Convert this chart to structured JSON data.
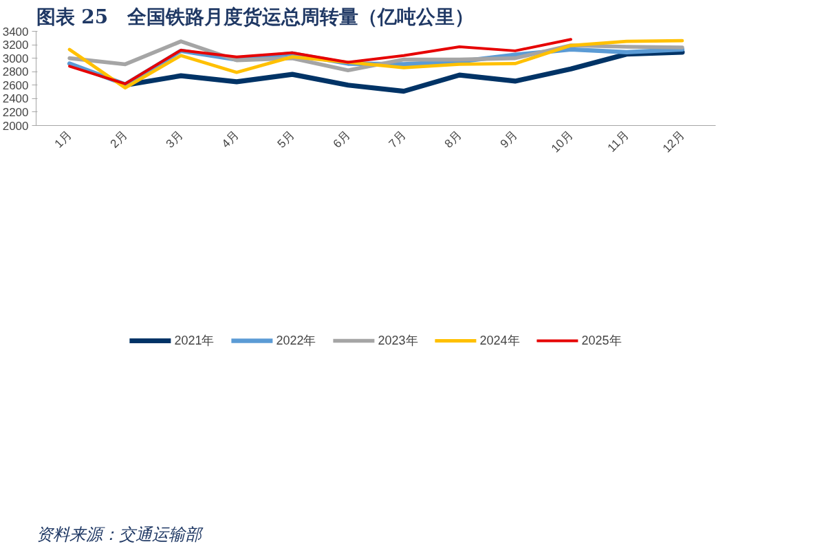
{
  "chart_data": {
    "type": "line",
    "title": "图表 25　全国铁路月度货运总周转量（亿吨公里）",
    "categories": [
      "1月",
      "2月",
      "3月",
      "4月",
      "5月",
      "6月",
      "7月",
      "8月",
      "9月",
      "10月",
      "11月",
      "12月"
    ],
    "series": [
      {
        "name": "2021年",
        "color": "#003366",
        "values": [
          null,
          2600,
          2740,
          2650,
          2760,
          2600,
          2510,
          2750,
          2660,
          2840,
          3060,
          3090
        ]
      },
      {
        "name": "2022年",
        "color": "#5b9bd5",
        "values": [
          2920,
          2610,
          3110,
          2980,
          3070,
          2920,
          2910,
          2950,
          3050,
          3130,
          3090,
          3130
        ]
      },
      {
        "name": "2023年",
        "color": "#a5a5a5",
        "values": [
          3000,
          2910,
          3250,
          2970,
          3000,
          2820,
          2980,
          2980,
          3000,
          3190,
          3170,
          3160
        ]
      },
      {
        "name": "2024年",
        "color": "#ffc000",
        "values": [
          3130,
          2560,
          3040,
          2790,
          3020,
          2940,
          2860,
          2910,
          2920,
          3190,
          3250,
          3260
        ]
      },
      {
        "name": "2025年",
        "color": "#e60000",
        "values": [
          2880,
          2620,
          3120,
          3020,
          3080,
          2940,
          3040,
          3170,
          3110,
          3280,
          null,
          null
        ]
      }
    ],
    "ylim": [
      2000,
      3400
    ],
    "yticks": [
      2000,
      2200,
      2400,
      2600,
      2800,
      3000,
      3200,
      3400
    ],
    "grid": false,
    "legend": "bottom",
    "marker": "none",
    "line_style": "solid",
    "annotations": [
      "资料来源：交通运输部"
    ]
  }
}
